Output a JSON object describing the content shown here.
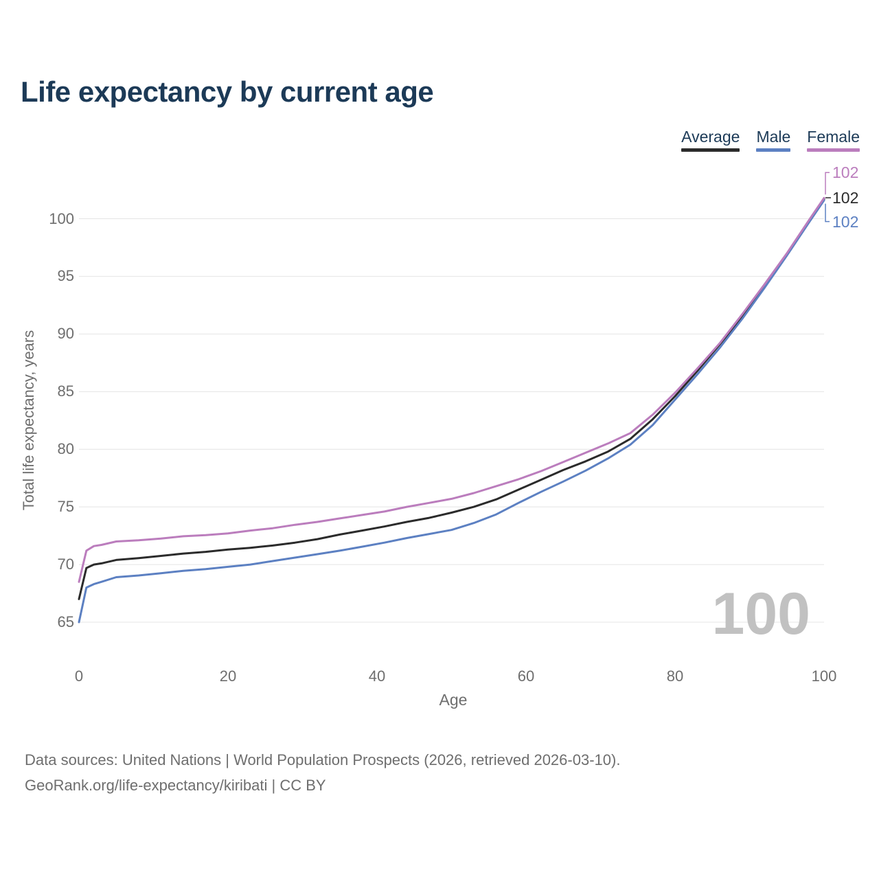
{
  "title": "Life expectancy by current age",
  "legend": {
    "items": [
      {
        "label": "Average",
        "color": "#2b2b2b"
      },
      {
        "label": "Male",
        "color": "#5c80c2"
      },
      {
        "label": "Female",
        "color": "#bb7dbd"
      }
    ]
  },
  "chart_data": {
    "type": "line",
    "title": "Life expectancy by current age",
    "xlabel": "Age",
    "ylabel": "Total life expectancy, years",
    "x_ticks": [
      0,
      20,
      40,
      60,
      80,
      100
    ],
    "y_ticks": [
      65,
      70,
      75,
      80,
      85,
      90,
      95,
      100
    ],
    "xlim": [
      0,
      100
    ],
    "ylim": [
      65,
      103.5
    ],
    "grid": "horizontal",
    "x": [
      0,
      1,
      2,
      3,
      5,
      8,
      11,
      14,
      17,
      20,
      23,
      26,
      29,
      32,
      35,
      38,
      41,
      44,
      47,
      50,
      53,
      56,
      59,
      62,
      65,
      68,
      71,
      74,
      77,
      80,
      83,
      86,
      89,
      92,
      95,
      98,
      100
    ],
    "series": [
      {
        "name": "Average",
        "color": "#2b2b2b",
        "end_label": "102",
        "values": [
          67.0,
          69.7,
          70.0,
          70.1,
          70.4,
          70.55,
          70.75,
          70.95,
          71.1,
          71.3,
          71.45,
          71.65,
          71.9,
          72.2,
          72.6,
          72.95,
          73.3,
          73.7,
          74.05,
          74.5,
          75.0,
          75.65,
          76.5,
          77.35,
          78.2,
          78.95,
          79.8,
          80.9,
          82.6,
          84.6,
          86.8,
          89.1,
          91.5,
          94.2,
          96.9,
          99.8,
          101.7
        ]
      },
      {
        "name": "Male",
        "color": "#5c80c2",
        "end_label": "102",
        "values": [
          65.0,
          68.0,
          68.3,
          68.5,
          68.9,
          69.05,
          69.25,
          69.45,
          69.6,
          69.8,
          70.0,
          70.3,
          70.6,
          70.9,
          71.2,
          71.55,
          71.9,
          72.3,
          72.65,
          73.0,
          73.6,
          74.35,
          75.35,
          76.3,
          77.2,
          78.15,
          79.2,
          80.4,
          82.1,
          84.3,
          86.5,
          88.8,
          91.3,
          94.0,
          96.8,
          99.7,
          101.6
        ]
      },
      {
        "name": "Female",
        "color": "#bb7dbd",
        "end_label": "102",
        "values": [
          68.5,
          71.2,
          71.6,
          71.7,
          72.0,
          72.1,
          72.25,
          72.45,
          72.55,
          72.7,
          72.95,
          73.15,
          73.45,
          73.7,
          74.0,
          74.3,
          74.6,
          75.0,
          75.35,
          75.7,
          76.2,
          76.8,
          77.4,
          78.1,
          78.9,
          79.7,
          80.5,
          81.4,
          83.0,
          84.9,
          87.0,
          89.2,
          91.7,
          94.3,
          97.0,
          99.9,
          101.8
        ]
      }
    ]
  },
  "watermark": "100",
  "footer": {
    "line1": "Data sources: United Nations | World Population Prospects (2026, retrieved 2026-03-10).",
    "line2": "GeoRank.org/life-expectancy/kiribati | CC BY"
  }
}
